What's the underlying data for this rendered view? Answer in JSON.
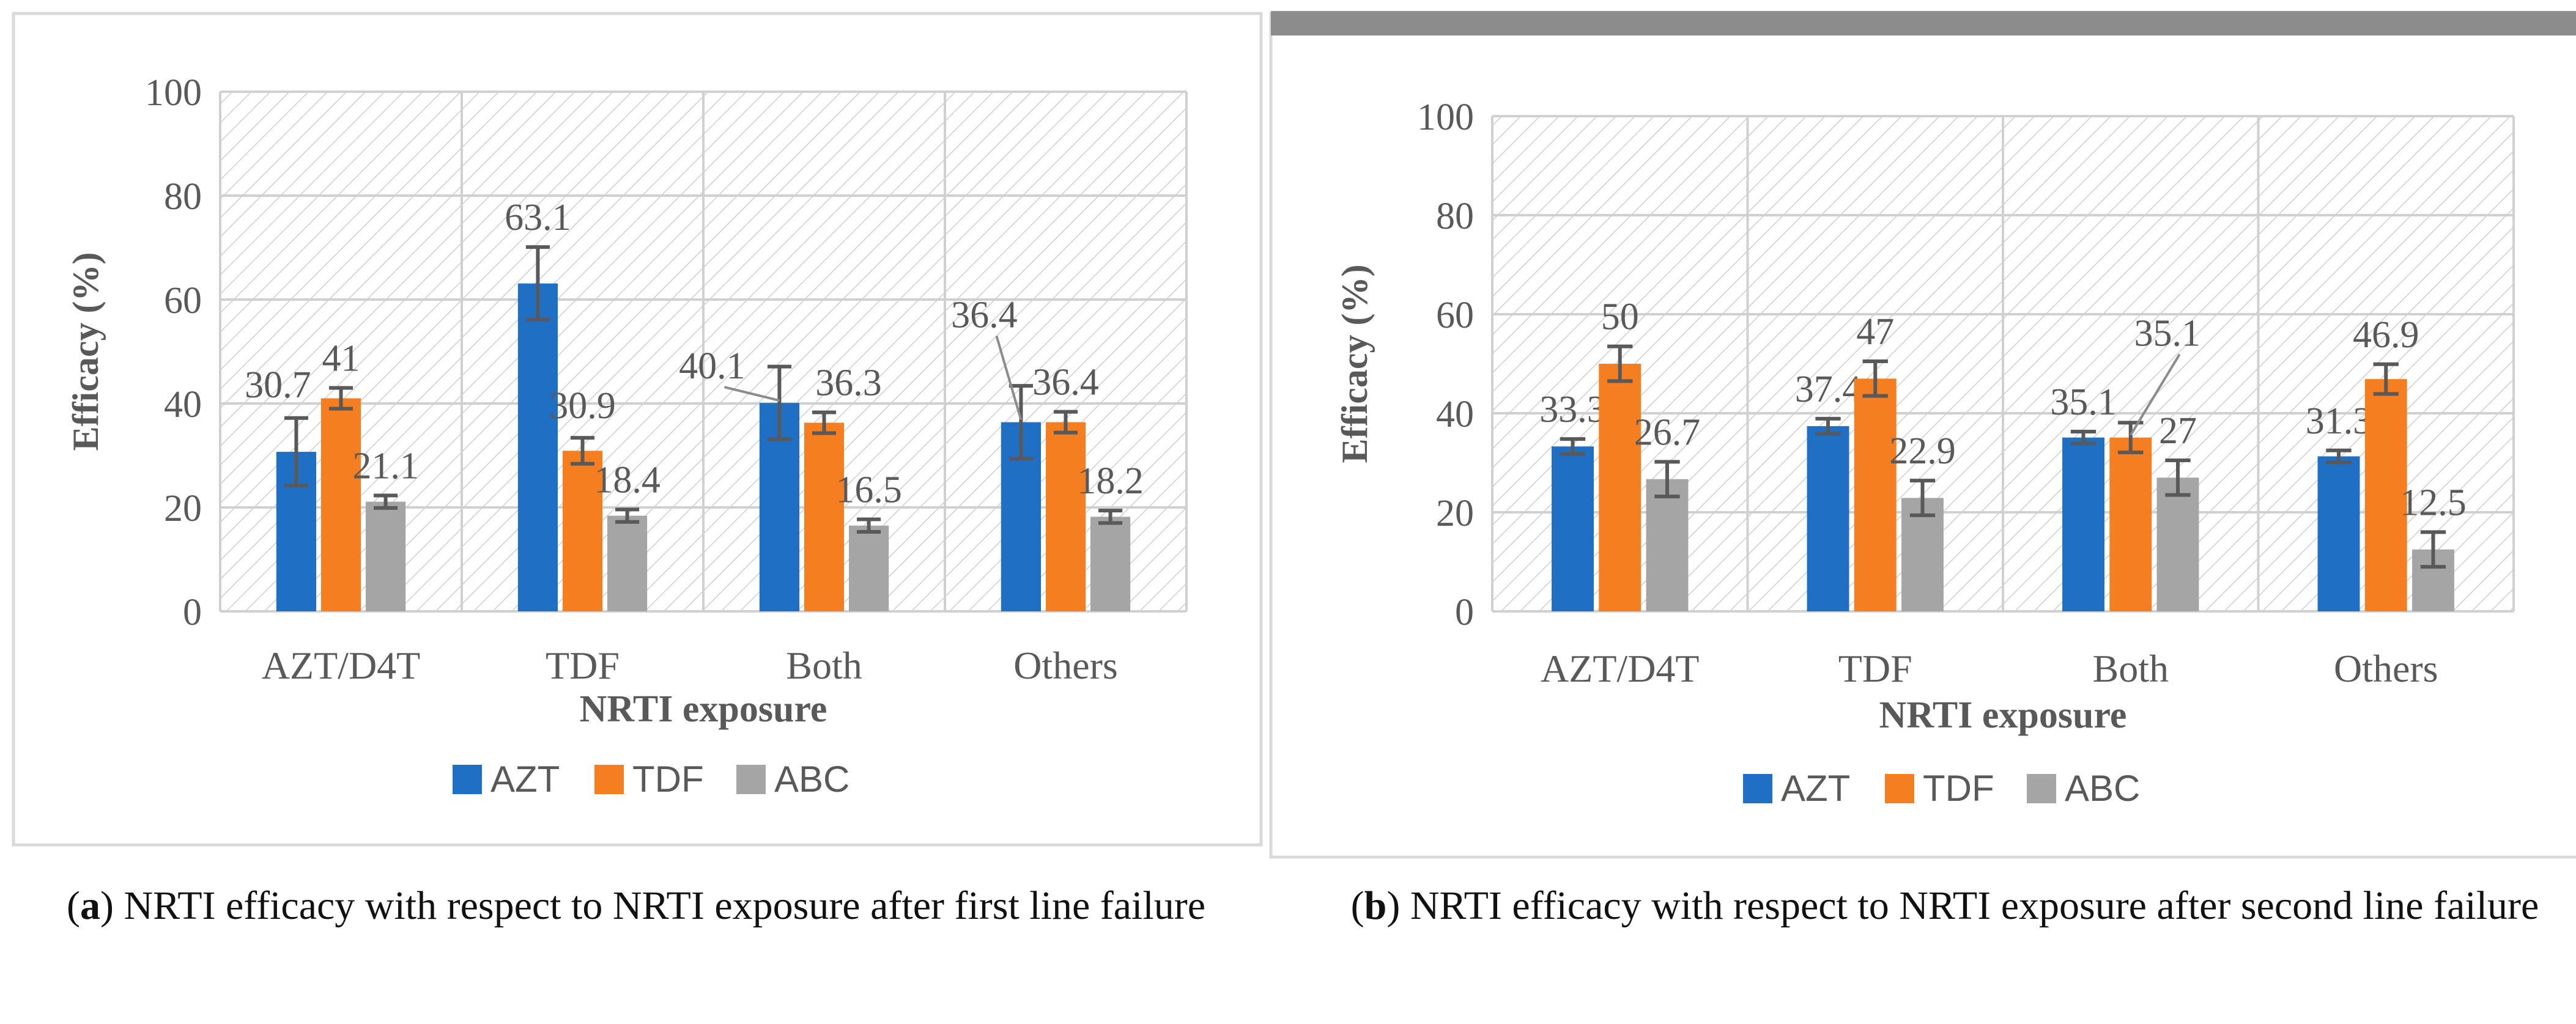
{
  "colors": {
    "series": [
      "#1F6FC5",
      "#F57F20",
      "#A5A5A5"
    ],
    "error_bar": "#595959",
    "grid": "#D0D0D0",
    "hatch": "#C8C8C8",
    "axis_text": "#595959",
    "panel_border": "#D9D9D9",
    "top_bar": "#8C8C8C"
  },
  "chart_data": [
    {
      "panel": "a",
      "type": "bar",
      "categories": [
        "AZT/D4T",
        "TDF",
        "Both",
        "Others"
      ],
      "series": [
        {
          "name": "AZT",
          "values": [
            30.7,
            63.1,
            40.1,
            36.4
          ],
          "errors": [
            6.5,
            7.0,
            7.0,
            7.0
          ]
        },
        {
          "name": "TDF",
          "values": [
            41,
            30.9,
            36.3,
            36.4
          ],
          "errors": [
            2.0,
            2.5,
            2.0,
            2.0
          ]
        },
        {
          "name": "ABC",
          "values": [
            21.1,
            18.4,
            16.5,
            18.2
          ],
          "errors": [
            1.2,
            1.2,
            1.2,
            1.2
          ]
        }
      ],
      "data_labels": [
        [
          "30.7",
          "63.1",
          "40.1",
          "36.4"
        ],
        [
          "41",
          "30.9",
          "36.3",
          "36.4"
        ],
        [
          "21.1",
          "18.4",
          "16.5",
          "18.2"
        ]
      ],
      "title": "",
      "xlabel": "NRTI exposure",
      "ylabel": "Efficacy (%)",
      "ylim": [
        0,
        100
      ],
      "yticks": [
        "0",
        "20",
        "40",
        "60",
        "80",
        "100"
      ],
      "legend": [
        "AZT",
        "TDF",
        "ABC"
      ],
      "legend_position": "bottom",
      "grid": true,
      "caption_letter": "a",
      "caption_text": "NRTI efficacy with respect to NRTI exposure after first line failure"
    },
    {
      "panel": "b",
      "type": "bar",
      "categories": [
        "AZT/D4T",
        "TDF",
        "Both",
        "Others"
      ],
      "series": [
        {
          "name": "AZT",
          "values": [
            33.3,
            37.4,
            35.1,
            31.3
          ],
          "errors": [
            1.5,
            1.5,
            1.2,
            1.2
          ]
        },
        {
          "name": "TDF",
          "values": [
            50,
            47,
            35.1,
            46.9
          ],
          "errors": [
            3.5,
            3.5,
            3.0,
            3.0
          ]
        },
        {
          "name": "ABC",
          "values": [
            26.7,
            22.9,
            27,
            12.5
          ],
          "errors": [
            3.5,
            3.5,
            3.5,
            3.5
          ]
        }
      ],
      "data_labels": [
        [
          "33.3",
          "37.4",
          "35.1",
          "31.3"
        ],
        [
          "50",
          "47",
          "35.1",
          "46.9"
        ],
        [
          "26.7",
          "22.9",
          "27",
          "12.5"
        ]
      ],
      "title": "",
      "xlabel": "NRTI exposure",
      "ylabel": "Efficacy (%)",
      "ylim": [
        0,
        100
      ],
      "yticks": [
        "0",
        "20",
        "40",
        "60",
        "80",
        "100"
      ],
      "legend": [
        "AZT",
        "TDF",
        "ABC"
      ],
      "legend_position": "bottom",
      "grid": true,
      "caption_letter": "b",
      "caption_text": "NRTI efficacy with respect to NRTI exposure after second line failure"
    }
  ]
}
